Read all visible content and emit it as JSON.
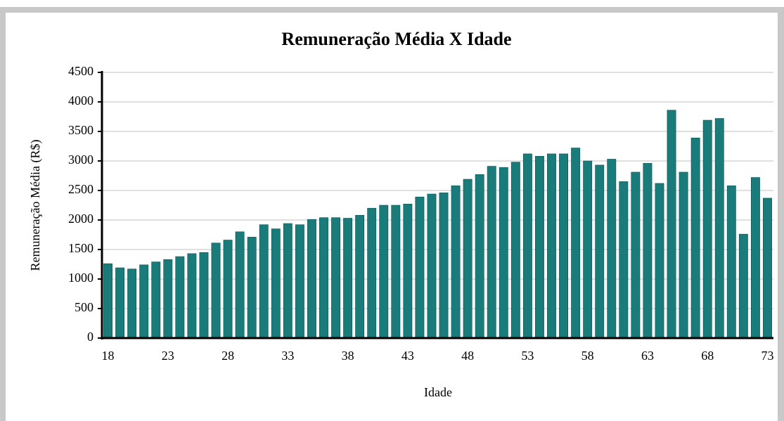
{
  "chart_data": {
    "type": "bar",
    "title": "Remuneração Média X Idade",
    "xlabel": "Idade",
    "ylabel": "Remuneração Média (R$)",
    "categories": [
      "18",
      null,
      null,
      null,
      null,
      "23",
      null,
      null,
      null,
      null,
      "28",
      null,
      null,
      null,
      null,
      "33",
      null,
      null,
      null,
      null,
      "38",
      null,
      null,
      null,
      null,
      "43",
      null,
      null,
      null,
      null,
      "48",
      null,
      null,
      null,
      null,
      "53",
      null,
      null,
      null,
      null,
      "58",
      null,
      null,
      null,
      null,
      "63",
      null,
      null,
      null,
      null,
      "68",
      null,
      null,
      null,
      null,
      "73"
    ],
    "values": [
      1260,
      1190,
      1170,
      1240,
      1290,
      1330,
      1380,
      1430,
      1450,
      1610,
      1660,
      1800,
      1710,
      1920,
      1850,
      1940,
      1920,
      2010,
      2040,
      2040,
      2030,
      2080,
      2200,
      2250,
      2250,
      2270,
      2390,
      2440,
      2460,
      2580,
      2690,
      2770,
      2910,
      2890,
      2980,
      3120,
      3080,
      3120,
      3120,
      3220,
      3000,
      2930,
      3030,
      2650,
      2810,
      2960,
      2620,
      3860,
      2810,
      3390,
      3690,
      3720,
      2580,
      1760,
      2720,
      2370
    ],
    "color": "#1a7b7b",
    "ylim": [
      0,
      4500
    ],
    "yticks": [
      0,
      500,
      1000,
      1500,
      2000,
      2500,
      3000,
      3500,
      4000,
      4500
    ],
    "grid": true
  }
}
